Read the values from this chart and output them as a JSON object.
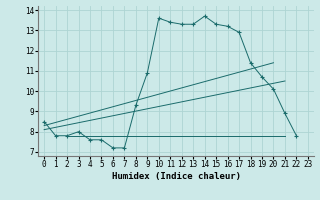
{
  "xlabel": "Humidex (Indice chaleur)",
  "bg_color": "#cce9e8",
  "grid_color": "#aed4d3",
  "line_color": "#1a6b6b",
  "xlim": [
    -0.5,
    23.5
  ],
  "ylim": [
    6.8,
    14.2
  ],
  "xticks": [
    0,
    1,
    2,
    3,
    4,
    5,
    6,
    7,
    8,
    9,
    10,
    11,
    12,
    13,
    14,
    15,
    16,
    17,
    18,
    19,
    20,
    21,
    22,
    23
  ],
  "yticks": [
    7,
    8,
    9,
    10,
    11,
    12,
    13,
    14
  ],
  "series1_x": [
    0,
    1,
    2,
    3,
    4,
    5,
    6,
    7,
    8,
    9,
    10,
    11,
    12,
    13,
    14,
    15,
    16,
    17,
    18,
    19,
    20,
    21,
    22
  ],
  "series1_y": [
    8.5,
    7.8,
    7.8,
    8.0,
    7.6,
    7.6,
    7.2,
    7.2,
    9.3,
    10.9,
    13.6,
    13.4,
    13.3,
    13.3,
    13.7,
    13.3,
    13.2,
    12.9,
    11.4,
    10.7,
    10.1,
    8.9,
    7.8
  ],
  "line2_x": [
    0,
    20
  ],
  "line2_y": [
    8.3,
    11.4
  ],
  "line3_x": [
    0,
    21
  ],
  "line3_y": [
    8.1,
    10.5
  ],
  "line4_x": [
    2,
    21
  ],
  "line4_y": [
    7.8,
    7.8
  ]
}
